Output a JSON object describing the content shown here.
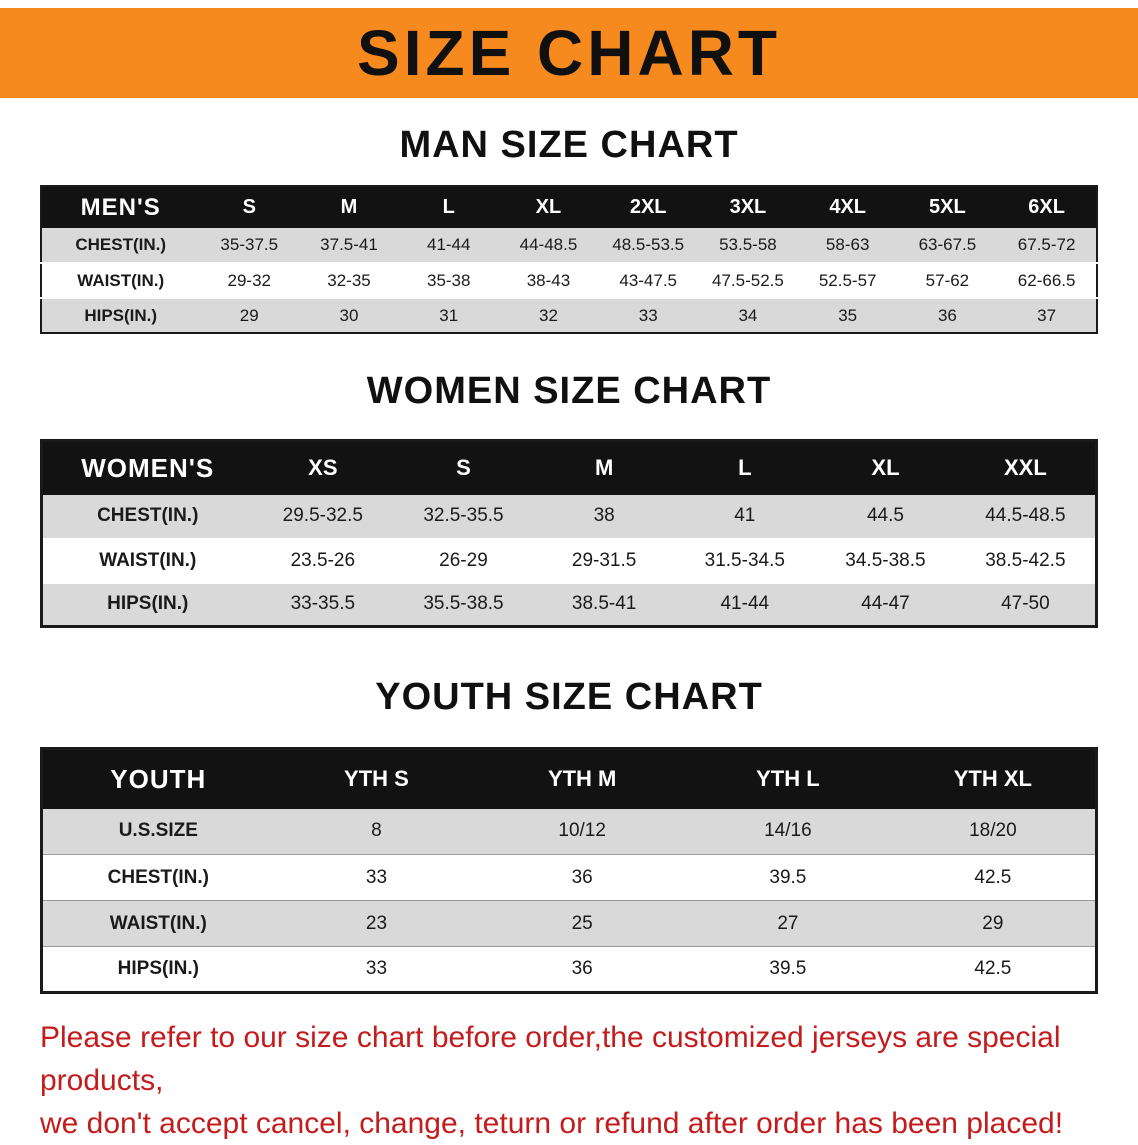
{
  "banner": {
    "title": "SIZE CHART",
    "bg_color": "#f68a1e",
    "text_color": "#101010"
  },
  "men": {
    "heading": "MAN SIZE CHART",
    "table": {
      "header": [
        "MEN'S",
        "S",
        "M",
        "L",
        "XL",
        "2XL",
        "3XL",
        "4XL",
        "5XL",
        "6XL"
      ],
      "rows": [
        [
          "CHEST(IN.)",
          "35-37.5",
          "37.5-41",
          "41-44",
          "44-48.5",
          "48.5-53.5",
          "53.5-58",
          "58-63",
          "63-67.5",
          "67.5-72"
        ],
        [
          "WAIST(IN.)",
          "29-32",
          "32-35",
          "35-38",
          "38-43",
          "43-47.5",
          "47.5-52.5",
          "52.5-57",
          "57-62",
          "62-66.5"
        ],
        [
          "HIPS(IN.)",
          "29",
          "30",
          "31",
          "32",
          "33",
          "34",
          "35",
          "36",
          "37"
        ]
      ]
    }
  },
  "women": {
    "heading": "WOMEN SIZE CHART",
    "table": {
      "header": [
        "WOMEN'S",
        "XS",
        "S",
        "M",
        "L",
        "XL",
        "XXL"
      ],
      "rows": [
        [
          "CHEST(IN.)",
          "29.5-32.5",
          "32.5-35.5",
          "38",
          "41",
          "44.5",
          "44.5-48.5"
        ],
        [
          "WAIST(IN.)",
          "23.5-26",
          "26-29",
          "29-31.5",
          "31.5-34.5",
          "34.5-38.5",
          "38.5-42.5"
        ],
        [
          "HIPS(IN.)",
          "33-35.5",
          "35.5-38.5",
          "38.5-41",
          "41-44",
          "44-47",
          "47-50"
        ]
      ]
    }
  },
  "youth": {
    "heading": "YOUTH SIZE CHART",
    "table": {
      "header": [
        "YOUTH",
        "YTH S",
        "YTH M",
        "YTH L",
        "YTH XL"
      ],
      "rows": [
        [
          "U.S.SIZE",
          "8",
          "10/12",
          "14/16",
          "18/20"
        ],
        [
          "CHEST(IN.)",
          "33",
          "36",
          "39.5",
          "42.5"
        ],
        [
          "WAIST(IN.)",
          "23",
          "25",
          "27",
          "29"
        ],
        [
          "HIPS(IN.)",
          "33",
          "36",
          "39.5",
          "42.5"
        ]
      ]
    }
  },
  "footer": {
    "line1": "Please refer to our size chart before order,the customized jerseys are special products,",
    "line2": "we don't accept cancel, change, teturn or refund after order has been placed!",
    "text_color": "#c41c1c"
  }
}
